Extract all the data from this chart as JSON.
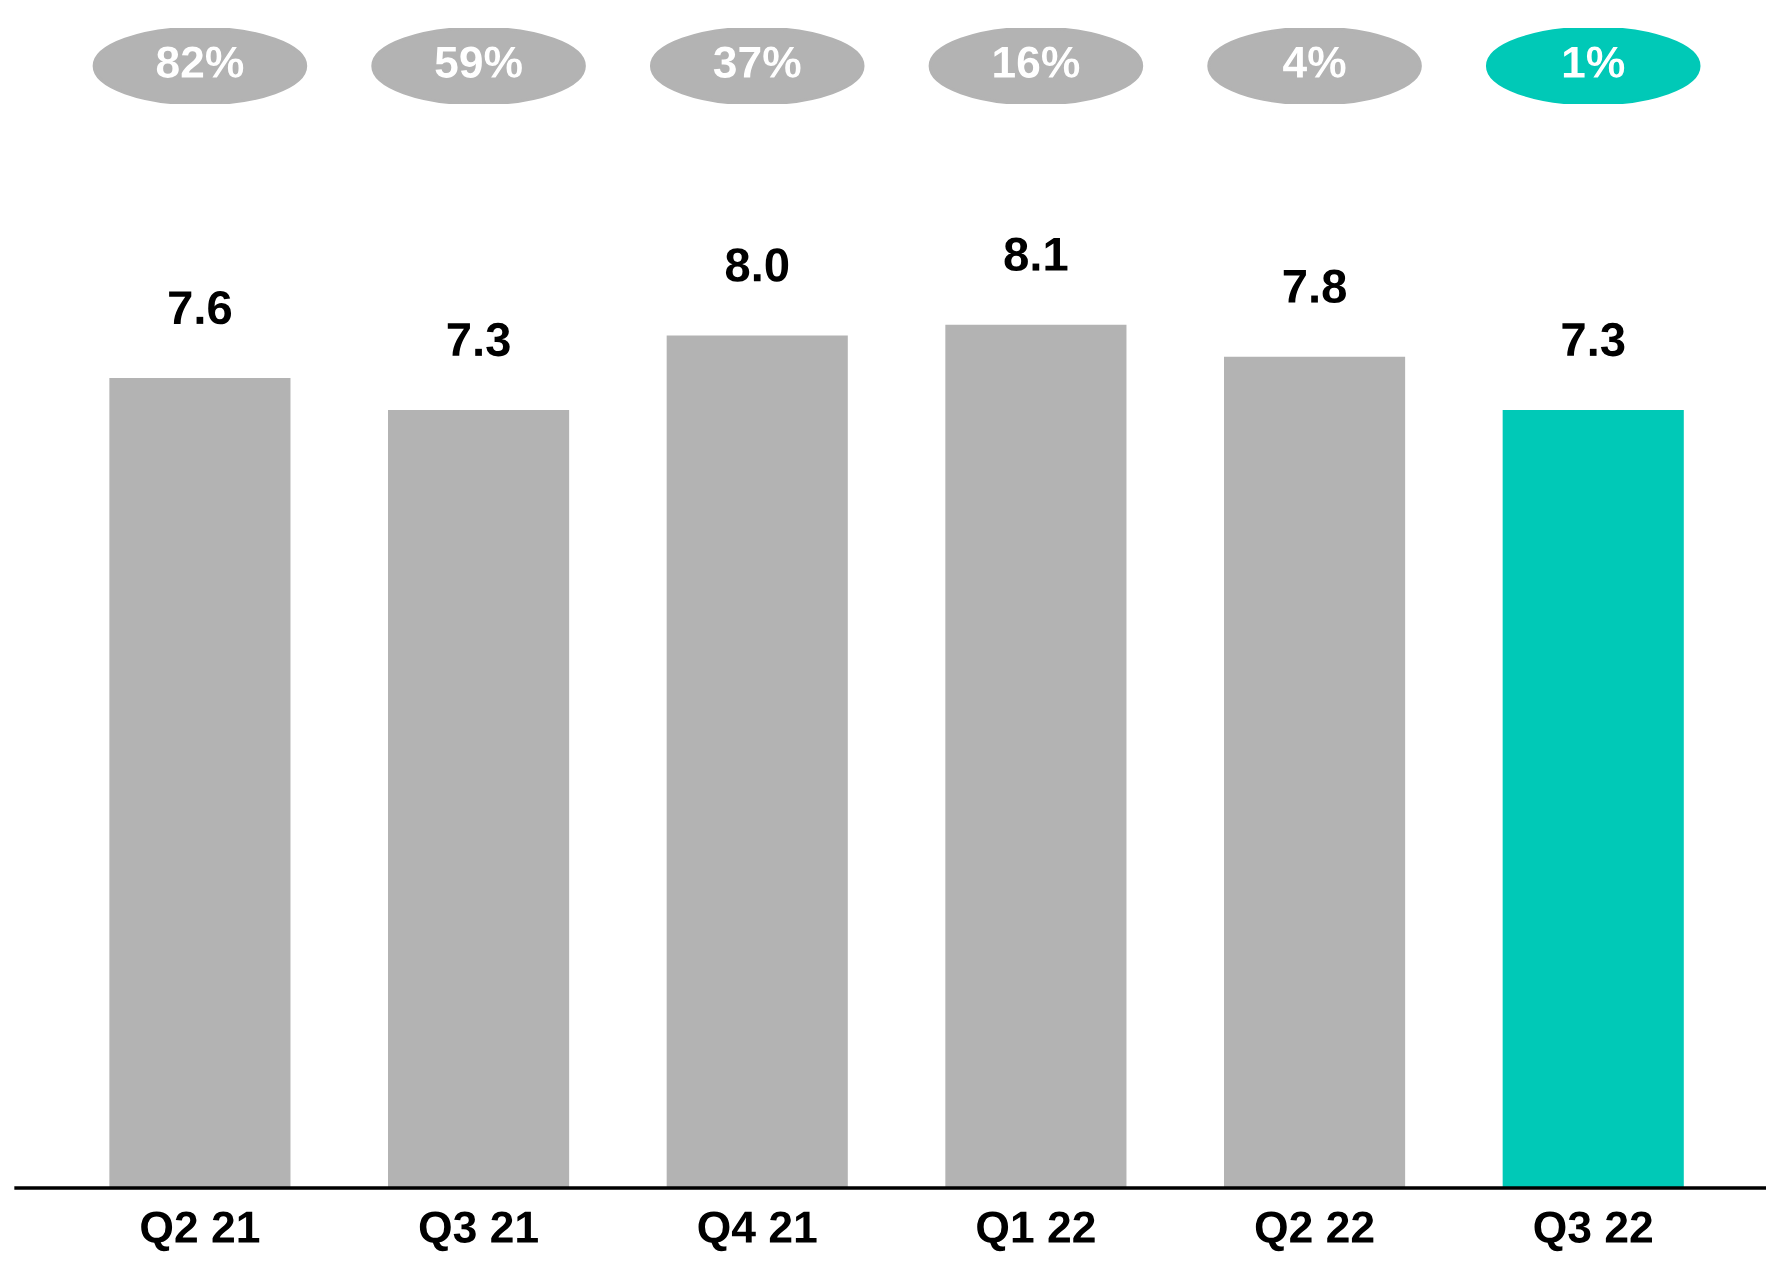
{
  "chart_data": {
    "type": "bar",
    "categories": [
      "Q2 21",
      "Q3 21",
      "Q4 21",
      "Q1 22",
      "Q2 22",
      "Q3 22"
    ],
    "values": [
      7.6,
      7.3,
      8.0,
      8.1,
      7.8,
      7.3
    ],
    "colors": [
      "#b3b3b3",
      "#b3b3b3",
      "#b3b3b3",
      "#b3b3b3",
      "#b3b3b3",
      "#00c9b7"
    ],
    "value_labels": [
      "7.6",
      "7.3",
      "8.0",
      "8.1",
      "7.8",
      "7.3"
    ],
    "annotations": [
      "82%",
      "59%",
      "37%",
      "16%",
      "4%",
      "1%"
    ],
    "tick_labels": "x"
  }
}
